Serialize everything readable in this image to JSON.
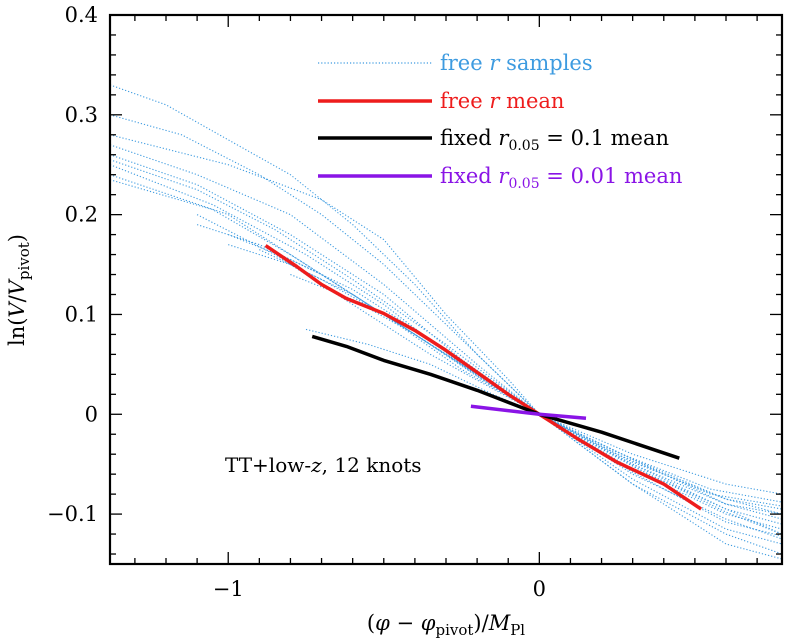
{
  "chart_data": {
    "type": "line",
    "title": "",
    "xlabel": "(φ − φ_pivot)/M_Pl",
    "ylabel": "ln(V/V_pivot)",
    "xlim": [
      -1.38,
      0.78
    ],
    "ylim": [
      -0.15,
      0.4
    ],
    "x_ticks": [
      -1,
      0
    ],
    "x_tick_labels": [
      "−1",
      "0"
    ],
    "y_ticks": [
      -0.1,
      0,
      0.1,
      0.2,
      0.3,
      0.4
    ],
    "y_tick_labels": [
      "−0.1",
      "0",
      "0.1",
      "0.2",
      "0.3",
      "0.4"
    ],
    "annotation": "TT+low-z, 12 knots",
    "legend_position": "top-right",
    "series": [
      {
        "name": "free r mean",
        "color": "#ee1c1c",
        "style": "solid",
        "points": [
          [
            -0.88,
            0.169
          ],
          [
            -0.78,
            0.148
          ],
          [
            -0.7,
            0.13
          ],
          [
            -0.62,
            0.116
          ],
          [
            -0.5,
            0.101
          ],
          [
            -0.4,
            0.084
          ],
          [
            -0.3,
            0.064
          ],
          [
            -0.2,
            0.042
          ],
          [
            -0.1,
            0.02
          ],
          [
            0,
            0
          ],
          [
            0.12,
            -0.024
          ],
          [
            0.25,
            -0.048
          ],
          [
            0.4,
            -0.07
          ],
          [
            0.52,
            -0.095
          ]
        ]
      },
      {
        "name": "fixed r_0.05 = 0.1 mean",
        "color": "#000000",
        "style": "solid",
        "points": [
          [
            -0.73,
            0.078
          ],
          [
            -0.62,
            0.068
          ],
          [
            -0.5,
            0.054
          ],
          [
            -0.35,
            0.04
          ],
          [
            -0.2,
            0.024
          ],
          [
            0,
            0
          ],
          [
            0.2,
            -0.018
          ],
          [
            0.45,
            -0.044
          ]
        ]
      },
      {
        "name": "fixed r_0.05 = 0.01 mean",
        "color": "#8a14e6",
        "style": "solid",
        "points": [
          [
            -0.22,
            0.008
          ],
          [
            0,
            0
          ],
          [
            0.15,
            -0.004
          ]
        ]
      },
      {
        "name": "free r samples",
        "color": "#3d9be0",
        "style": "dotted",
        "samples": [
          [
            [
              -1.38,
              0.33
            ],
            [
              -1.2,
              0.31
            ],
            [
              -1.0,
              0.275
            ],
            [
              -0.8,
              0.24
            ],
            [
              -0.6,
              0.19
            ],
            [
              -0.4,
              0.13
            ],
            [
              -0.2,
              0.06
            ],
            [
              0,
              0
            ],
            [
              0.3,
              -0.07
            ],
            [
              0.6,
              -0.13
            ],
            [
              0.78,
              -0.145
            ]
          ],
          [
            [
              -1.38,
              0.3
            ],
            [
              -1.15,
              0.28
            ],
            [
              -0.9,
              0.24
            ],
            [
              -0.7,
              0.2
            ],
            [
              -0.5,
              0.15
            ],
            [
              -0.3,
              0.09
            ],
            [
              -0.1,
              0.03
            ],
            [
              0,
              0
            ],
            [
              0.3,
              -0.065
            ],
            [
              0.6,
              -0.115
            ],
            [
              0.78,
              -0.13
            ]
          ],
          [
            [
              -1.38,
              0.27
            ],
            [
              -1.1,
              0.24
            ],
            [
              -0.8,
              0.2
            ],
            [
              -0.5,
              0.13
            ],
            [
              -0.2,
              0.05
            ],
            [
              0,
              0
            ],
            [
              0.3,
              -0.06
            ],
            [
              0.6,
              -0.105
            ],
            [
              0.78,
              -0.125
            ]
          ],
          [
            [
              -1.38,
              0.26
            ],
            [
              -1.1,
              0.23
            ],
            [
              -0.8,
              0.18
            ],
            [
              -0.5,
              0.12
            ],
            [
              -0.25,
              0.055
            ],
            [
              0,
              0
            ],
            [
              0.3,
              -0.055
            ],
            [
              0.6,
              -0.1
            ],
            [
              0.78,
              -0.115
            ]
          ],
          [
            [
              -1.38,
              0.25
            ],
            [
              -1.05,
              0.21
            ],
            [
              -0.75,
              0.16
            ],
            [
              -0.5,
              0.11
            ],
            [
              -0.25,
              0.05
            ],
            [
              0,
              0
            ],
            [
              0.3,
              -0.05
            ],
            [
              0.6,
              -0.095
            ],
            [
              0.78,
              -0.11
            ]
          ],
          [
            [
              -1.38,
              0.24
            ],
            [
              -1.0,
              0.2
            ],
            [
              -0.75,
              0.15
            ],
            [
              -0.5,
              0.1
            ],
            [
              -0.25,
              0.045
            ],
            [
              0,
              0
            ],
            [
              0.3,
              -0.045
            ],
            [
              0.6,
              -0.09
            ],
            [
              0.78,
              -0.105
            ]
          ],
          [
            [
              -1.38,
              0.235
            ],
            [
              -1.05,
              0.205
            ],
            [
              -0.8,
              0.16
            ],
            [
              -0.55,
              0.11
            ],
            [
              -0.3,
              0.06
            ],
            [
              0,
              0
            ],
            [
              0.3,
              -0.052
            ],
            [
              0.6,
              -0.098
            ],
            [
              0.78,
              -0.12
            ]
          ],
          [
            [
              -1.38,
              0.255
            ],
            [
              -1.1,
              0.225
            ],
            [
              -0.85,
              0.185
            ],
            [
              -0.6,
              0.135
            ],
            [
              -0.3,
              0.07
            ],
            [
              0,
              0
            ],
            [
              0.3,
              -0.058
            ],
            [
              0.6,
              -0.108
            ],
            [
              0.78,
              -0.122
            ]
          ],
          [
            [
              -1.1,
              0.19
            ],
            [
              -0.9,
              0.17
            ],
            [
              -0.7,
              0.14
            ],
            [
              -0.5,
              0.1
            ],
            [
              -0.25,
              0.05
            ],
            [
              0,
              0
            ],
            [
              0.3,
              -0.05
            ],
            [
              0.6,
              -0.09
            ],
            [
              0.78,
              -0.1
            ]
          ],
          [
            [
              -1.0,
              0.18
            ],
            [
              -0.8,
              0.155
            ],
            [
              -0.6,
              0.125
            ],
            [
              -0.4,
              0.085
            ],
            [
              -0.2,
              0.04
            ],
            [
              0,
              0
            ],
            [
              0.3,
              -0.045
            ],
            [
              0.6,
              -0.085
            ],
            [
              0.78,
              -0.095
            ]
          ],
          [
            [
              -1.0,
              0.17
            ],
            [
              -0.8,
              0.15
            ],
            [
              -0.6,
              0.12
            ],
            [
              -0.4,
              0.08
            ],
            [
              -0.2,
              0.038
            ],
            [
              0,
              0
            ],
            [
              0.25,
              -0.04
            ],
            [
              0.55,
              -0.08
            ],
            [
              0.78,
              -0.092
            ]
          ],
          [
            [
              -0.9,
              0.165
            ],
            [
              -0.7,
              0.135
            ],
            [
              -0.5,
              0.1
            ],
            [
              -0.3,
              0.06
            ],
            [
              -0.15,
              0.028
            ],
            [
              0,
              0
            ],
            [
              0.25,
              -0.038
            ],
            [
              0.55,
              -0.075
            ],
            [
              0.78,
              -0.088
            ]
          ],
          [
            [
              -0.8,
              0.14
            ],
            [
              -0.6,
              0.115
            ],
            [
              -0.4,
              0.08
            ],
            [
              -0.2,
              0.04
            ],
            [
              0,
              0
            ],
            [
              0.3,
              -0.048
            ],
            [
              0.6,
              -0.085
            ],
            [
              0.78,
              -0.1
            ]
          ],
          [
            [
              -0.75,
              0.085
            ],
            [
              -0.55,
              0.07
            ],
            [
              -0.35,
              0.05
            ],
            [
              -0.15,
              0.02
            ],
            [
              0,
              0
            ],
            [
              0.3,
              -0.04
            ],
            [
              0.6,
              -0.07
            ],
            [
              0.78,
              -0.08
            ]
          ],
          [
            [
              -1.38,
              0.28
            ],
            [
              -1.0,
              0.25
            ],
            [
              -0.7,
              0.215
            ],
            [
              -0.5,
              0.175
            ],
            [
              -0.3,
              0.1
            ],
            [
              -0.1,
              0.035
            ],
            [
              0,
              0
            ],
            [
              0.3,
              -0.07
            ],
            [
              0.6,
              -0.12
            ],
            [
              0.78,
              -0.14
            ]
          ],
          [
            [
              -1.1,
              0.2
            ],
            [
              -0.85,
              0.16
            ],
            [
              -0.6,
              0.11
            ],
            [
              -0.35,
              0.06
            ],
            [
              0,
              0
            ],
            [
              0.35,
              -0.06
            ],
            [
              0.78,
              -0.12
            ]
          ]
        ]
      }
    ]
  }
}
